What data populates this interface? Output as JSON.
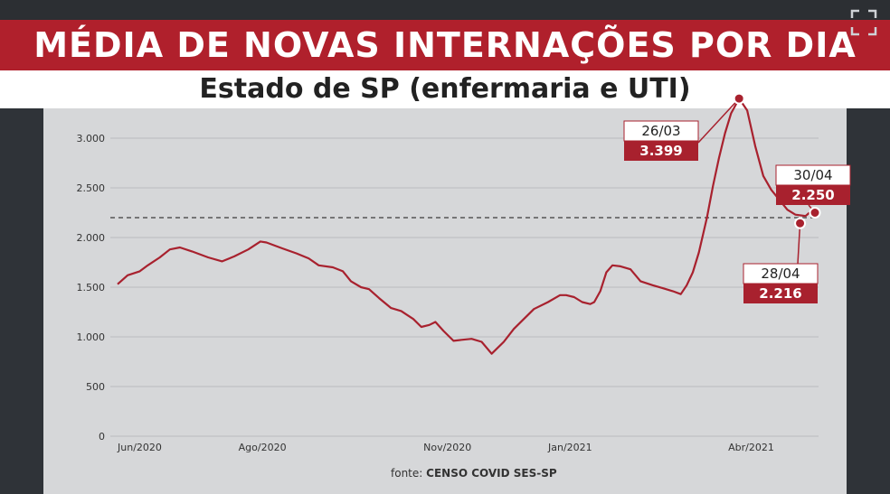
{
  "title": "MÉDIA DE NOVAS INTERNAÇÕES POR DIA",
  "subtitle": "Estado de SP (enfermaria e UTI)",
  "source_label": "fonte:",
  "source_name": "CENSO COVID SES-SP",
  "colors": {
    "series": "#a8212e",
    "title_band": "#b0202c",
    "panel": "#d6d7d9"
  },
  "icons": {
    "expand": "expand-icon"
  },
  "chart_data": {
    "type": "line",
    "title": "MÉDIA DE NOVAS INTERNAÇÕES POR DIA",
    "subtitle": "Estado de SP (enfermaria e UTI)",
    "xlabel": "",
    "ylabel": "",
    "ylim": [
      0,
      3300
    ],
    "yticks": [
      0,
      500,
      1000,
      1500,
      2000,
      2500,
      3000
    ],
    "ytick_labels": [
      "0",
      "500",
      "1.000",
      "1.500",
      "2.000",
      "2.500",
      "3.000"
    ],
    "xlim": [
      "2020-05-21",
      "2021-04-30"
    ],
    "xticks": [
      {
        "date": "2020-06-01",
        "label": "Jun/2020"
      },
      {
        "date": "2020-08-01",
        "label": "Ago/2020"
      },
      {
        "date": "2020-11-01",
        "label": "Nov/2020"
      },
      {
        "date": "2021-01-01",
        "label": "Jan/2021"
      },
      {
        "date": "2021-04-01",
        "label": "Abr/2021"
      }
    ],
    "grid": true,
    "reference_line": {
      "value": 2200,
      "style": "dashed"
    },
    "series": [
      {
        "x": [
          "2020-05-21",
          "2020-05-26",
          "2020-06-01",
          "2020-06-05",
          "2020-06-11",
          "2020-06-16",
          "2020-06-21",
          "2020-06-27",
          "2020-07-05",
          "2020-07-12",
          "2020-07-18",
          "2020-07-25",
          "2020-07-31",
          "2020-08-03",
          "2020-08-11",
          "2020-08-18",
          "2020-08-24",
          "2020-08-29",
          "2020-09-05",
          "2020-09-10",
          "2020-09-14",
          "2020-09-19",
          "2020-09-23",
          "2020-09-28",
          "2020-10-04",
          "2020-10-09",
          "2020-10-12",
          "2020-10-15",
          "2020-10-19",
          "2020-10-23",
          "2020-10-26",
          "2020-10-30",
          "2020-11-04",
          "2020-11-08",
          "2020-11-13",
          "2020-11-18",
          "2020-11-23",
          "2020-11-29",
          "2020-12-04",
          "2020-12-09",
          "2020-12-14",
          "2020-12-21",
          "2020-12-27",
          "2020-12-30",
          "2021-01-03",
          "2021-01-07",
          "2021-01-11",
          "2021-01-13",
          "2021-01-16",
          "2021-01-19",
          "2021-01-22",
          "2021-01-26",
          "2021-01-31",
          "2021-02-05",
          "2021-02-11",
          "2021-02-16",
          "2021-02-21",
          "2021-02-25",
          "2021-02-28",
          "2021-03-03",
          "2021-03-06",
          "2021-03-10",
          "2021-03-13",
          "2021-03-16",
          "2021-03-19",
          "2021-03-22",
          "2021-03-26",
          "2021-03-30",
          "2021-04-03",
          "2021-04-07",
          "2021-04-11",
          "2021-04-15",
          "2021-04-19",
          "2021-04-23",
          "2021-04-28",
          "2021-04-30"
        ],
        "values": [
          1530,
          1620,
          1660,
          1720,
          1800,
          1880,
          1900,
          1860,
          1800,
          1760,
          1810,
          1880,
          1960,
          1950,
          1890,
          1840,
          1790,
          1720,
          1700,
          1660,
          1560,
          1500,
          1480,
          1390,
          1290,
          1260,
          1220,
          1180,
          1100,
          1120,
          1150,
          1060,
          960,
          970,
          980,
          950,
          830,
          950,
          1080,
          1180,
          1280,
          1350,
          1420,
          1420,
          1400,
          1350,
          1330,
          1350,
          1460,
          1650,
          1720,
          1710,
          1680,
          1560,
          1520,
          1490,
          1460,
          1430,
          1520,
          1650,
          1850,
          2200,
          2520,
          2800,
          3050,
          3250,
          3399,
          3280,
          2920,
          2620,
          2480,
          2380,
          2280,
          2230,
          2216,
          2250
        ]
      }
    ],
    "annotations": [
      {
        "date": "2021-03-26",
        "label": "26/03",
        "value_label": "3.399",
        "value": 3399
      },
      {
        "date": "2021-04-30",
        "label": "30/04",
        "value_label": "2.250",
        "value": 2250
      },
      {
        "date": "2021-04-28",
        "label": "28/04",
        "value_label": "2.216",
        "value": 2216
      }
    ]
  }
}
